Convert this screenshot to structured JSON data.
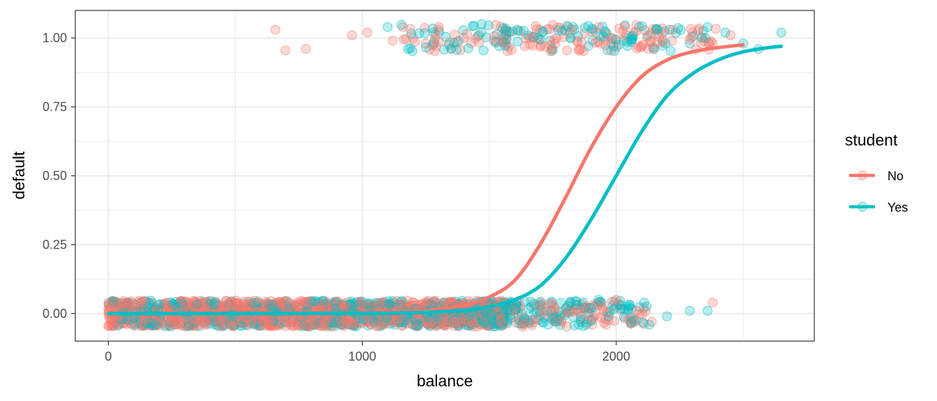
{
  "chart_data": {
    "type": "scatter",
    "xlabel": "balance",
    "ylabel": "default",
    "xlim": [
      -130,
      2780
    ],
    "ylim": [
      -0.1,
      1.1
    ],
    "x_ticks": [
      0,
      1000,
      2000
    ],
    "x_tick_labels": [
      "0",
      "1000",
      "2000"
    ],
    "x_minor_breaks": [
      500,
      1500,
      2500
    ],
    "y_ticks": [
      0,
      0.25,
      0.5,
      0.75,
      1
    ],
    "y_tick_labels": [
      "0.00",
      "0.25",
      "0.50",
      "0.75",
      "1.00"
    ],
    "y_minor_breaks": [
      0.125,
      0.375,
      0.625,
      0.875
    ],
    "grid": true,
    "legend": {
      "title": "student",
      "position": "right",
      "entries": [
        "No",
        "Yes"
      ]
    },
    "series": [
      {
        "name": "No",
        "color": "#F8766D",
        "fit": {
          "type": "logistic",
          "points": [
            [
              0,
              0.0
            ],
            [
              500,
              0.0003
            ],
            [
              1000,
              0.0025
            ],
            [
              1200,
              0.006
            ],
            [
              1400,
              0.03
            ],
            [
              1500,
              0.06
            ],
            [
              1600,
              0.12
            ],
            [
              1700,
              0.25
            ],
            [
              1800,
              0.42
            ],
            [
              1900,
              0.6
            ],
            [
              2000,
              0.75
            ],
            [
              2100,
              0.86
            ],
            [
              2200,
              0.92
            ],
            [
              2300,
              0.95
            ],
            [
              2400,
              0.965
            ],
            [
              2500,
              0.975
            ]
          ]
        },
        "points_high": [
          [
            658,
            1.03
          ],
          [
            697,
            0.955
          ],
          [
            778,
            0.96
          ],
          [
            960,
            1.01
          ],
          [
            1020,
            1.02
          ],
          [
            1120,
            0.99
          ],
          [
            1160,
            1.04
          ],
          [
            1200,
            1.0
          ],
          [
            1250,
            0.98
          ],
          [
            1300,
            1.03
          ],
          [
            1350,
            0.96
          ],
          [
            1400,
            1.0
          ],
          [
            1460,
            1.01
          ],
          [
            1520,
            0.99
          ],
          [
            1580,
            1.02
          ],
          [
            1640,
            0.97
          ],
          [
            1700,
            1.03
          ],
          [
            1760,
            0.98
          ],
          [
            1810,
            1.04
          ],
          [
            1860,
            0.96
          ],
          [
            1920,
            1.02
          ],
          [
            1980,
            0.98
          ],
          [
            2040,
            1.01
          ],
          [
            2100,
            0.97
          ],
          [
            2160,
            1.03
          ],
          [
            2220,
            0.99
          ],
          [
            2300,
            1.02
          ],
          [
            2380,
            0.98
          ],
          [
            2450,
            1.01
          ]
        ],
        "points_low": [
          [
            1880,
            0.02
          ],
          [
            1910,
            -0.01
          ],
          [
            1940,
            0.03
          ],
          [
            1960,
            -0.04
          ],
          [
            2000,
            0.05
          ],
          [
            2050,
            -0.02
          ],
          [
            2080,
            0.01
          ],
          [
            2140,
            -0.03
          ],
          [
            2380,
            0.04
          ]
        ]
      },
      {
        "name": "Yes",
        "color": "#00BFC4",
        "fit": {
          "type": "logistic",
          "points": [
            [
              0,
              0.0
            ],
            [
              500,
              0.0002
            ],
            [
              1000,
              0.001
            ],
            [
              1200,
              0.003
            ],
            [
              1400,
              0.012
            ],
            [
              1500,
              0.025
            ],
            [
              1600,
              0.05
            ],
            [
              1700,
              0.1
            ],
            [
              1800,
              0.2
            ],
            [
              1900,
              0.34
            ],
            [
              2000,
              0.5
            ],
            [
              2100,
              0.66
            ],
            [
              2200,
              0.79
            ],
            [
              2300,
              0.87
            ],
            [
              2400,
              0.92
            ],
            [
              2500,
              0.95
            ],
            [
              2600,
              0.965
            ],
            [
              2650,
              0.97
            ]
          ]
        },
        "points_high": [
          [
            1100,
            1.04
          ],
          [
            1180,
            0.96
          ],
          [
            1280,
            1.02
          ],
          [
            1380,
            0.99
          ],
          [
            1470,
            1.05
          ],
          [
            1540,
            0.97
          ],
          [
            1610,
            1.03
          ],
          [
            1690,
            1.0
          ],
          [
            1750,
            0.96
          ],
          [
            1830,
            1.04
          ],
          [
            1890,
            0.97
          ],
          [
            1960,
            1.02
          ],
          [
            2030,
            0.99
          ],
          [
            2090,
            1.04
          ],
          [
            2150,
            0.96
          ],
          [
            2210,
            1.03
          ],
          [
            2290,
            0.98
          ],
          [
            2360,
            1.04
          ],
          [
            2430,
            1.02
          ],
          [
            2500,
            0.98
          ],
          [
            2560,
            0.96
          ],
          [
            2650,
            1.02
          ]
        ],
        "points_low": [
          [
            1700,
            0.03
          ],
          [
            1760,
            -0.03
          ],
          [
            1820,
            0.04
          ],
          [
            1860,
            -0.02
          ],
          [
            1900,
            0.02
          ],
          [
            1930,
            0.05
          ],
          [
            1970,
            -0.01
          ],
          [
            2020,
            0.03
          ],
          [
            2060,
            -0.03
          ],
          [
            2110,
            0.04
          ],
          [
            2130,
            -0.04
          ],
          [
            2200,
            -0.01
          ],
          [
            2290,
            0.01
          ],
          [
            2360,
            0.01
          ]
        ]
      }
    ]
  }
}
